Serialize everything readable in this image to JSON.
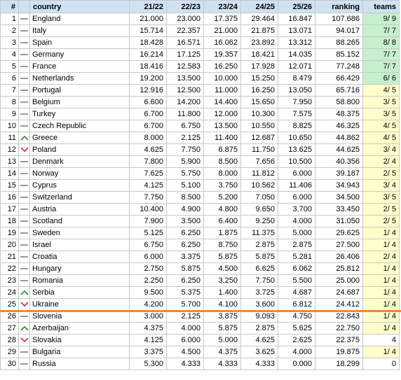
{
  "headers": {
    "idx": "#",
    "country": "country",
    "y1": "21/22",
    "y2": "22/23",
    "y3": "23/24",
    "y4": "24/25",
    "y5": "25/26",
    "ranking": "ranking",
    "teams": "teams"
  },
  "colors": {
    "header_bg": "#cfe2f3",
    "teams_full_bg": "#c6efce",
    "teams_partial_bg": "#ffffcc",
    "arrow_up": "#2e8b2e",
    "arrow_down": "#d62b2b",
    "dash": "#9a9a9a",
    "cutoff_line": "#f08a2c"
  },
  "cutoff_after_row": 25,
  "rows": [
    {
      "idx": "1",
      "trend": "same",
      "country": "England",
      "y1": "21.000",
      "y2": "23.000",
      "y3": "17.375",
      "y4": "29.464",
      "y5": "16.847",
      "ranking": "107.686",
      "teams": "9/ 9",
      "teams_status": "full"
    },
    {
      "idx": "2",
      "trend": "same",
      "country": "Italy",
      "y1": "15.714",
      "y2": "22.357",
      "y3": "21.000",
      "y4": "21.875",
      "y5": "13.071",
      "ranking": "94.017",
      "teams": "7/ 7",
      "teams_status": "full"
    },
    {
      "idx": "3",
      "trend": "same",
      "country": "Spain",
      "y1": "18.428",
      "y2": "16.571",
      "y3": "16.062",
      "y4": "23.892",
      "y5": "13.312",
      "ranking": "88.265",
      "teams": "8/ 8",
      "teams_status": "full"
    },
    {
      "idx": "4",
      "trend": "same",
      "country": "Germany",
      "y1": "16.214",
      "y2": "17.125",
      "y3": "19.357",
      "y4": "18.421",
      "y5": "14.035",
      "ranking": "85.152",
      "teams": "7/ 7",
      "teams_status": "full"
    },
    {
      "idx": "5",
      "trend": "same",
      "country": "France",
      "y1": "18.416",
      "y2": "12.583",
      "y3": "16.250",
      "y4": "17.928",
      "y5": "12.071",
      "ranking": "77.248",
      "teams": "7/ 7",
      "teams_status": "full"
    },
    {
      "idx": "6",
      "trend": "same",
      "country": "Netherlands",
      "y1": "19.200",
      "y2": "13.500",
      "y3": "10.000",
      "y4": "15.250",
      "y5": "8.479",
      "ranking": "66.429",
      "teams": "6/ 6",
      "teams_status": "full"
    },
    {
      "idx": "7",
      "trend": "same",
      "country": "Portugal",
      "y1": "12.916",
      "y2": "12.500",
      "y3": "11.000",
      "y4": "16.250",
      "y5": "13.050",
      "ranking": "65.716",
      "teams": "4/ 5",
      "teams_status": "partial"
    },
    {
      "idx": "8",
      "trend": "same",
      "country": "Belgium",
      "y1": "6.600",
      "y2": "14.200",
      "y3": "14.400",
      "y4": "15.650",
      "y5": "7.950",
      "ranking": "58.800",
      "teams": "3/ 5",
      "teams_status": "partial"
    },
    {
      "idx": "9",
      "trend": "same",
      "country": "Turkey",
      "y1": "6.700",
      "y2": "11.800",
      "y3": "12.000",
      "y4": "10.300",
      "y5": "7.575",
      "ranking": "48.375",
      "teams": "3/ 5",
      "teams_status": "partial"
    },
    {
      "idx": "10",
      "trend": "same",
      "country": "Czech Republic",
      "y1": "6.700",
      "y2": "6.750",
      "y3": "13.500",
      "y4": "10.550",
      "y5": "8.825",
      "ranking": "46.325",
      "teams": "4/ 5",
      "teams_status": "partial"
    },
    {
      "idx": "11",
      "trend": "up",
      "country": "Greece",
      "y1": "8.000",
      "y2": "2.125",
      "y3": "11.400",
      "y4": "12.687",
      "y5": "10.650",
      "ranking": "44.862",
      "teams": "4/ 5",
      "teams_status": "partial"
    },
    {
      "idx": "12",
      "trend": "down",
      "country": "Poland",
      "y1": "4.625",
      "y2": "7.750",
      "y3": "6.875",
      "y4": "11.750",
      "y5": "13.625",
      "ranking": "44.625",
      "teams": "3/ 4",
      "teams_status": "partial"
    },
    {
      "idx": "13",
      "trend": "same",
      "country": "Denmark",
      "y1": "7.800",
      "y2": "5.900",
      "y3": "8.500",
      "y4": "7.656",
      "y5": "10.500",
      "ranking": "40.356",
      "teams": "2/ 4",
      "teams_status": "partial"
    },
    {
      "idx": "14",
      "trend": "same",
      "country": "Norway",
      "y1": "7.625",
      "y2": "5.750",
      "y3": "8.000",
      "y4": "11.812",
      "y5": "6.000",
      "ranking": "39.187",
      "teams": "2/ 5",
      "teams_status": "partial"
    },
    {
      "idx": "15",
      "trend": "same",
      "country": "Cyprus",
      "y1": "4.125",
      "y2": "5.100",
      "y3": "3.750",
      "y4": "10.562",
      "y5": "11.406",
      "ranking": "34.943",
      "teams": "3/ 4",
      "teams_status": "partial"
    },
    {
      "idx": "16",
      "trend": "same",
      "country": "Switzerland",
      "y1": "7.750",
      "y2": "8.500",
      "y3": "5.200",
      "y4": "7.050",
      "y5": "6.000",
      "ranking": "34.500",
      "teams": "3/ 5",
      "teams_status": "partial"
    },
    {
      "idx": "17",
      "trend": "same",
      "country": "Austria",
      "y1": "10.400",
      "y2": "4.900",
      "y3": "4.800",
      "y4": "9.650",
      "y5": "3.700",
      "ranking": "33.450",
      "teams": "2/ 5",
      "teams_status": "partial"
    },
    {
      "idx": "18",
      "trend": "same",
      "country": "Scotland",
      "y1": "7.900",
      "y2": "3.500",
      "y3": "6.400",
      "y4": "9.250",
      "y5": "4.000",
      "ranking": "31.050",
      "teams": "2/ 5",
      "teams_status": "partial"
    },
    {
      "idx": "19",
      "trend": "same",
      "country": "Sweden",
      "y1": "5.125",
      "y2": "6.250",
      "y3": "1.875",
      "y4": "11.375",
      "y5": "5.000",
      "ranking": "29.625",
      "teams": "1/ 4",
      "teams_status": "partial"
    },
    {
      "idx": "20",
      "trend": "same",
      "country": "Israel",
      "y1": "6.750",
      "y2": "6.250",
      "y3": "8.750",
      "y4": "2.875",
      "y5": "2.875",
      "ranking": "27.500",
      "teams": "1/ 4",
      "teams_status": "partial"
    },
    {
      "idx": "21",
      "trend": "same",
      "country": "Croatia",
      "y1": "6.000",
      "y2": "3.375",
      "y3": "5.875",
      "y4": "5.875",
      "y5": "5.281",
      "ranking": "26.406",
      "teams": "2/ 4",
      "teams_status": "partial"
    },
    {
      "idx": "22",
      "trend": "same",
      "country": "Hungary",
      "y1": "2.750",
      "y2": "5.875",
      "y3": "4.500",
      "y4": "6.625",
      "y5": "6.062",
      "ranking": "25.812",
      "teams": "1/ 4",
      "teams_status": "partial"
    },
    {
      "idx": "23",
      "trend": "same",
      "country": "Romania",
      "y1": "2.250",
      "y2": "6.250",
      "y3": "3.250",
      "y4": "7.750",
      "y5": "5.500",
      "ranking": "25.000",
      "teams": "1/ 4",
      "teams_status": "partial"
    },
    {
      "idx": "24",
      "trend": "up",
      "country": "Serbia",
      "y1": "9.500",
      "y2": "5.375",
      "y3": "1.400",
      "y4": "3.725",
      "y5": "4.687",
      "ranking": "24.687",
      "teams": "1/ 4",
      "teams_status": "partial"
    },
    {
      "idx": "25",
      "trend": "down",
      "country": "Ukraine",
      "y1": "4.200",
      "y2": "5.700",
      "y3": "4.100",
      "y4": "3.600",
      "y5": "6.812",
      "ranking": "24.412",
      "teams": "1/ 4",
      "teams_status": "partial"
    },
    {
      "idx": "26",
      "trend": "same",
      "country": "Slovenia",
      "y1": "3.000",
      "y2": "2.125",
      "y3": "3.875",
      "y4": "9.093",
      "y5": "4.750",
      "ranking": "22.843",
      "teams": "1/ 4",
      "teams_status": "partial"
    },
    {
      "idx": "27",
      "trend": "up",
      "country": "Azerbaijan",
      "y1": "4.375",
      "y2": "4.000",
      "y3": "5.875",
      "y4": "2.875",
      "y5": "5.625",
      "ranking": "22.750",
      "teams": "1/ 4",
      "teams_status": "partial"
    },
    {
      "idx": "28",
      "trend": "down",
      "country": "Slovakia",
      "y1": "4.125",
      "y2": "6.000",
      "y3": "5.000",
      "y4": "4.625",
      "y5": "2.625",
      "ranking": "22.375",
      "teams": "4",
      "teams_status": "none"
    },
    {
      "idx": "29",
      "trend": "same",
      "country": "Bulgaria",
      "y1": "3.375",
      "y2": "4.500",
      "y3": "4.375",
      "y4": "3.625",
      "y5": "4.000",
      "ranking": "19.875",
      "teams": "1/ 4",
      "teams_status": "partial"
    },
    {
      "idx": "30",
      "trend": "same",
      "country": "Russia",
      "y1": "5.300",
      "y2": "4.333",
      "y3": "4.333",
      "y4": "4.333",
      "y5": "0.000",
      "ranking": "18.299",
      "teams": "0",
      "teams_status": "none"
    }
  ]
}
